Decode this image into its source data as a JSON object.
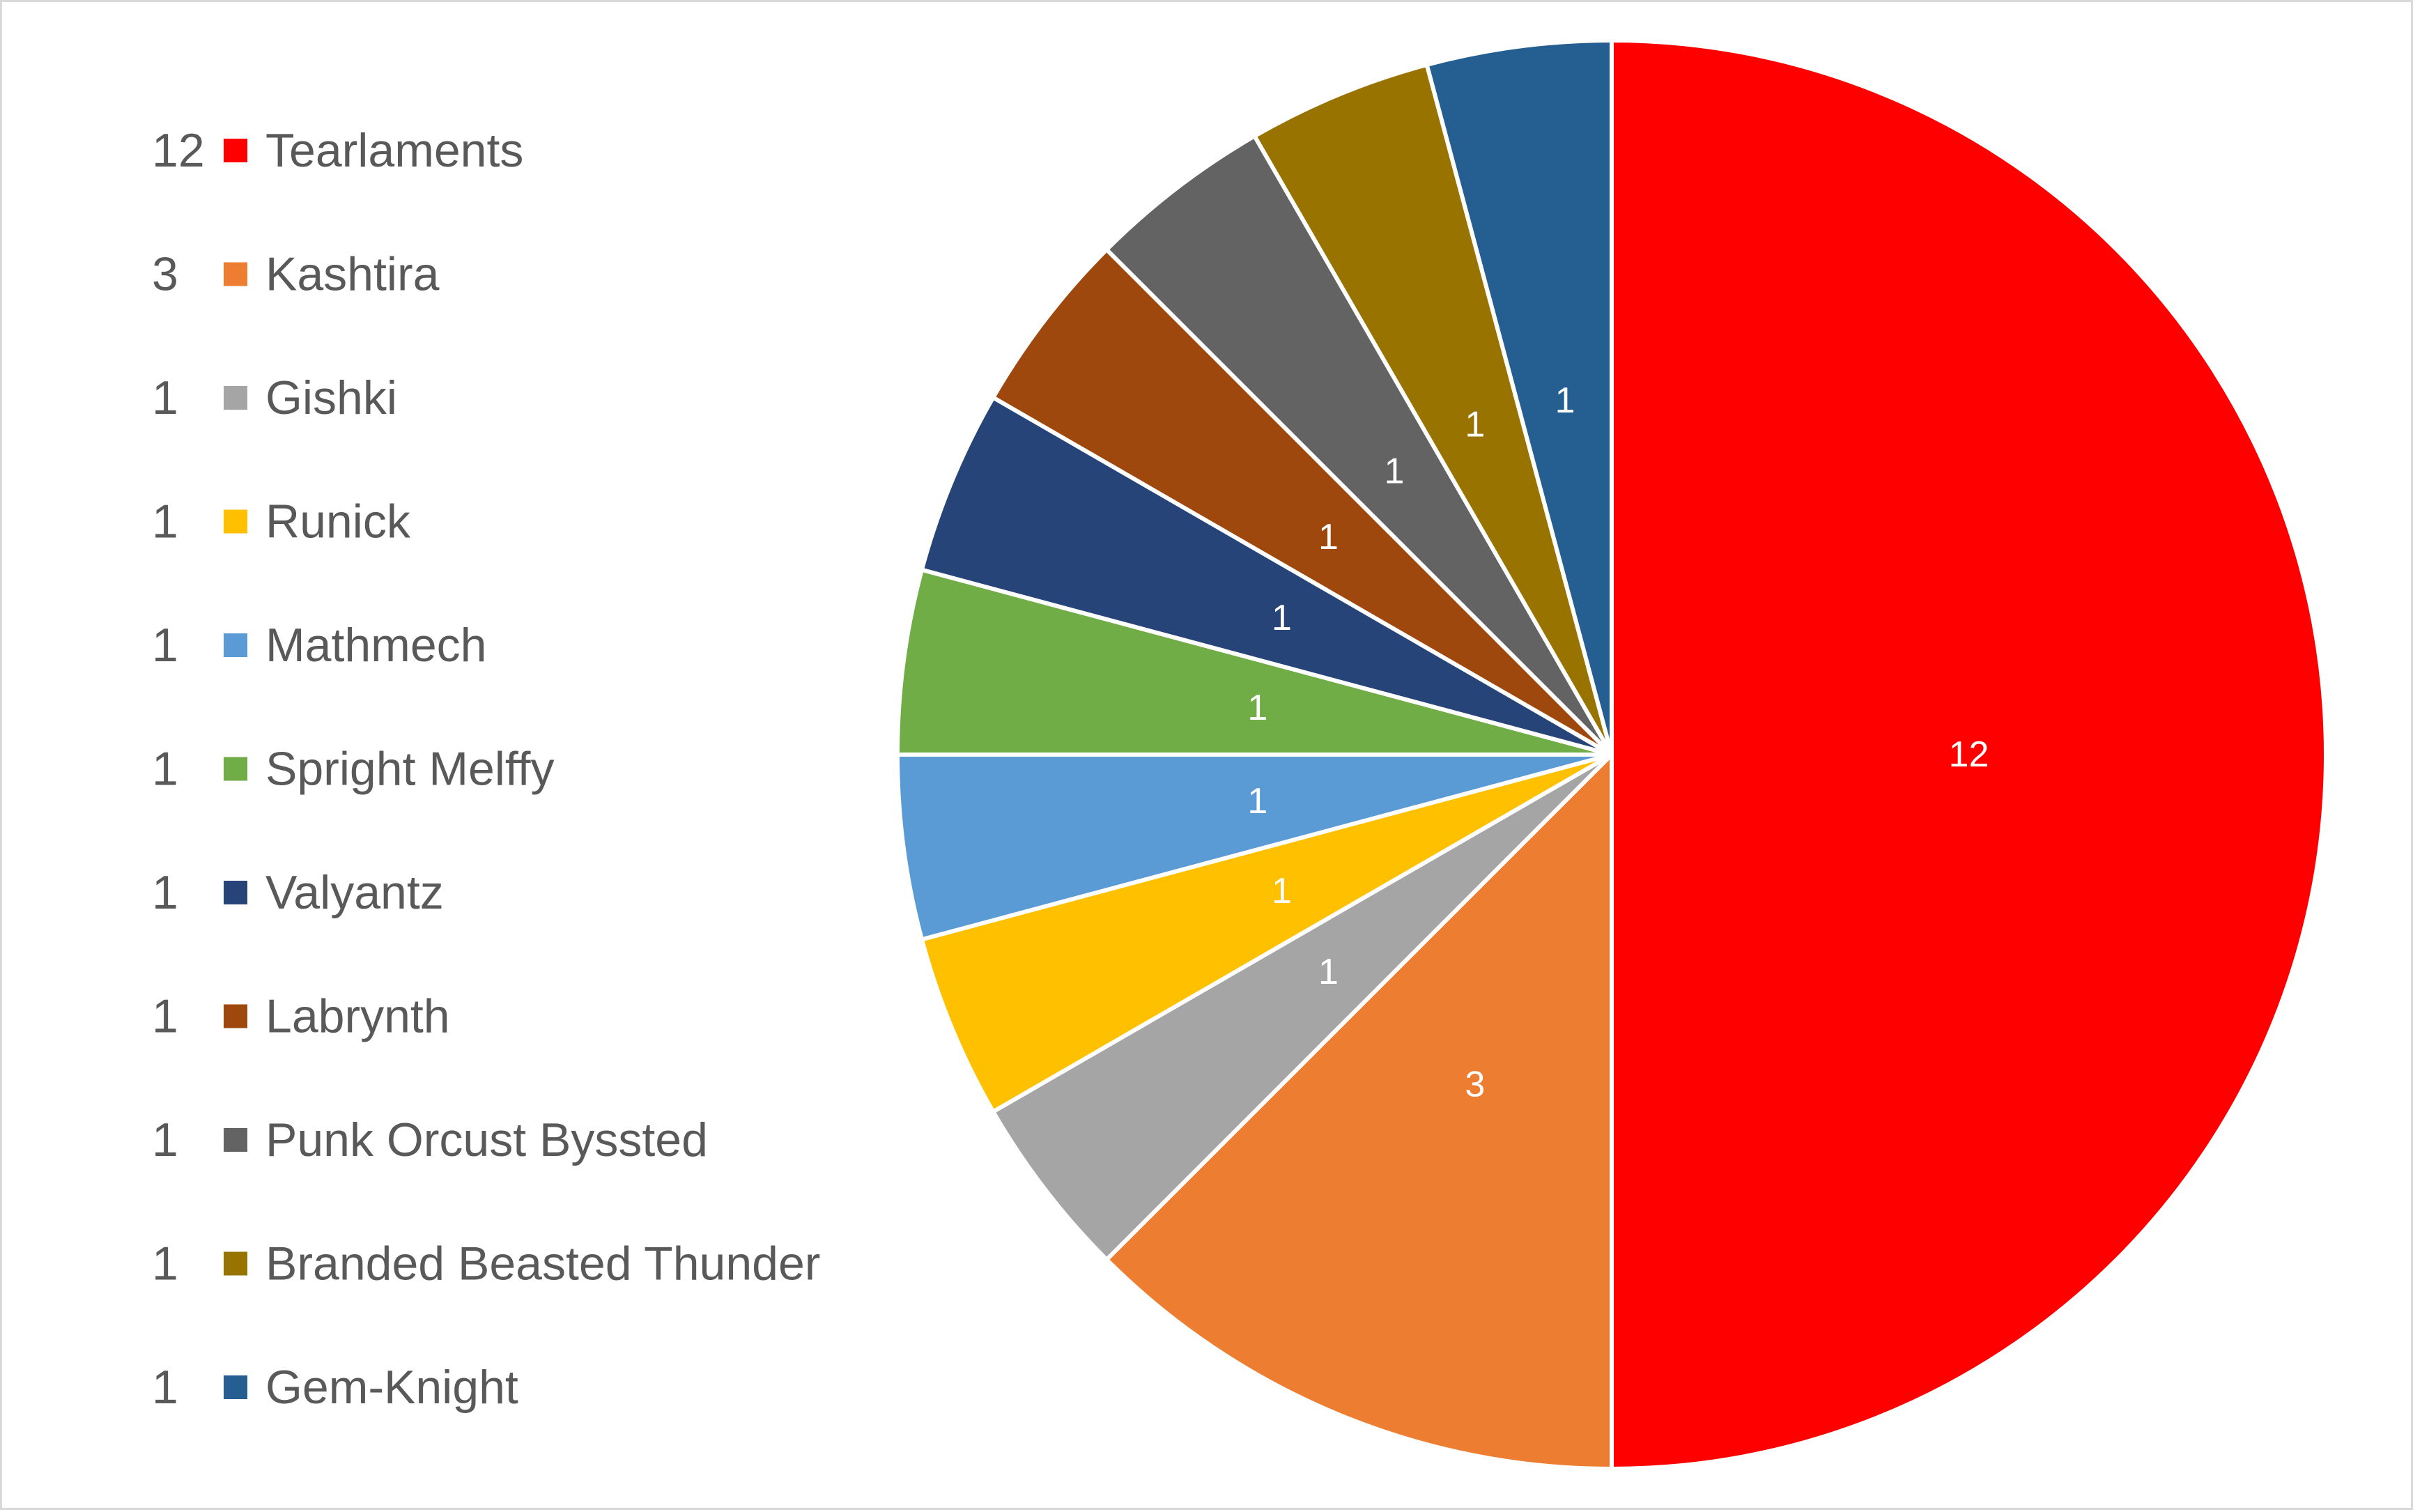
{
  "chart_data": {
    "type": "pie",
    "title": "",
    "categories": [
      "Tearlaments",
      "Kashtira",
      "Gishki",
      "Runick",
      "Mathmech",
      "Spright Melffy",
      "Valyantz",
      "Labrynth",
      "Punk Orcust Byssted",
      "Branded Beasted Thunder",
      "Gem-Knight"
    ],
    "values": [
      12,
      3,
      1,
      1,
      1,
      1,
      1,
      1,
      1,
      1,
      1
    ],
    "colors": [
      "#ff0000",
      "#ed7d31",
      "#a5a5a5",
      "#ffc000",
      "#5b9bd5",
      "#70ad47",
      "#264478",
      "#9e480e",
      "#636363",
      "#997300",
      "#255e91"
    ],
    "data_labels": [
      "12",
      "3",
      "1",
      "1",
      "1",
      "1",
      "1",
      "1",
      "1",
      "1",
      "1"
    ],
    "legend_values": [
      "12",
      "3",
      "1",
      "1",
      "1",
      "1",
      "1",
      "1",
      "1",
      "1",
      "1"
    ],
    "legend_placement": "left",
    "start_angle": "12 o'clock",
    "direction": "clockwise",
    "slice_border_color": "#ffffff"
  }
}
